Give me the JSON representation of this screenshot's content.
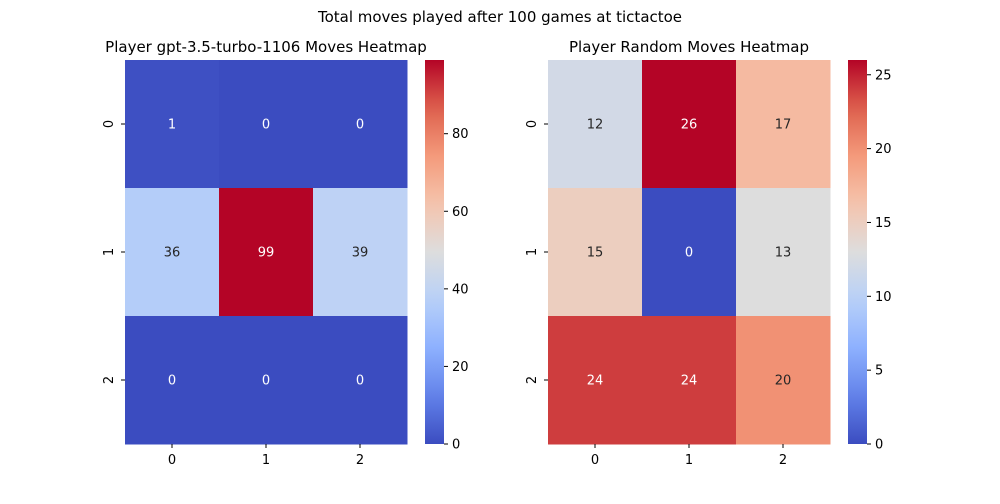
{
  "figure": {
    "suptitle": "Total moves played after 100 games at tictactoe"
  },
  "chart_data": [
    {
      "type": "heatmap",
      "title": "Player gpt-3.5-turbo-1106 Moves Heatmap",
      "x_categories": [
        "0",
        "1",
        "2"
      ],
      "y_categories": [
        "0",
        "1",
        "2"
      ],
      "values": [
        [
          1,
          0,
          0
        ],
        [
          36,
          99,
          39
        ],
        [
          0,
          0,
          0
        ]
      ],
      "vmin": 0,
      "vmax": 99,
      "colorbar_ticks": [
        0,
        20,
        40,
        60,
        80
      ],
      "colormap": "coolwarm"
    },
    {
      "type": "heatmap",
      "title": "Player Random Moves Heatmap",
      "x_categories": [
        "0",
        "1",
        "2"
      ],
      "y_categories": [
        "0",
        "1",
        "2"
      ],
      "values": [
        [
          12,
          26,
          17
        ],
        [
          15,
          0,
          13
        ],
        [
          24,
          24,
          20
        ]
      ],
      "vmin": 0,
      "vmax": 26,
      "colorbar_ticks": [
        0,
        5,
        10,
        15,
        20,
        25
      ],
      "colormap": "coolwarm"
    }
  ]
}
